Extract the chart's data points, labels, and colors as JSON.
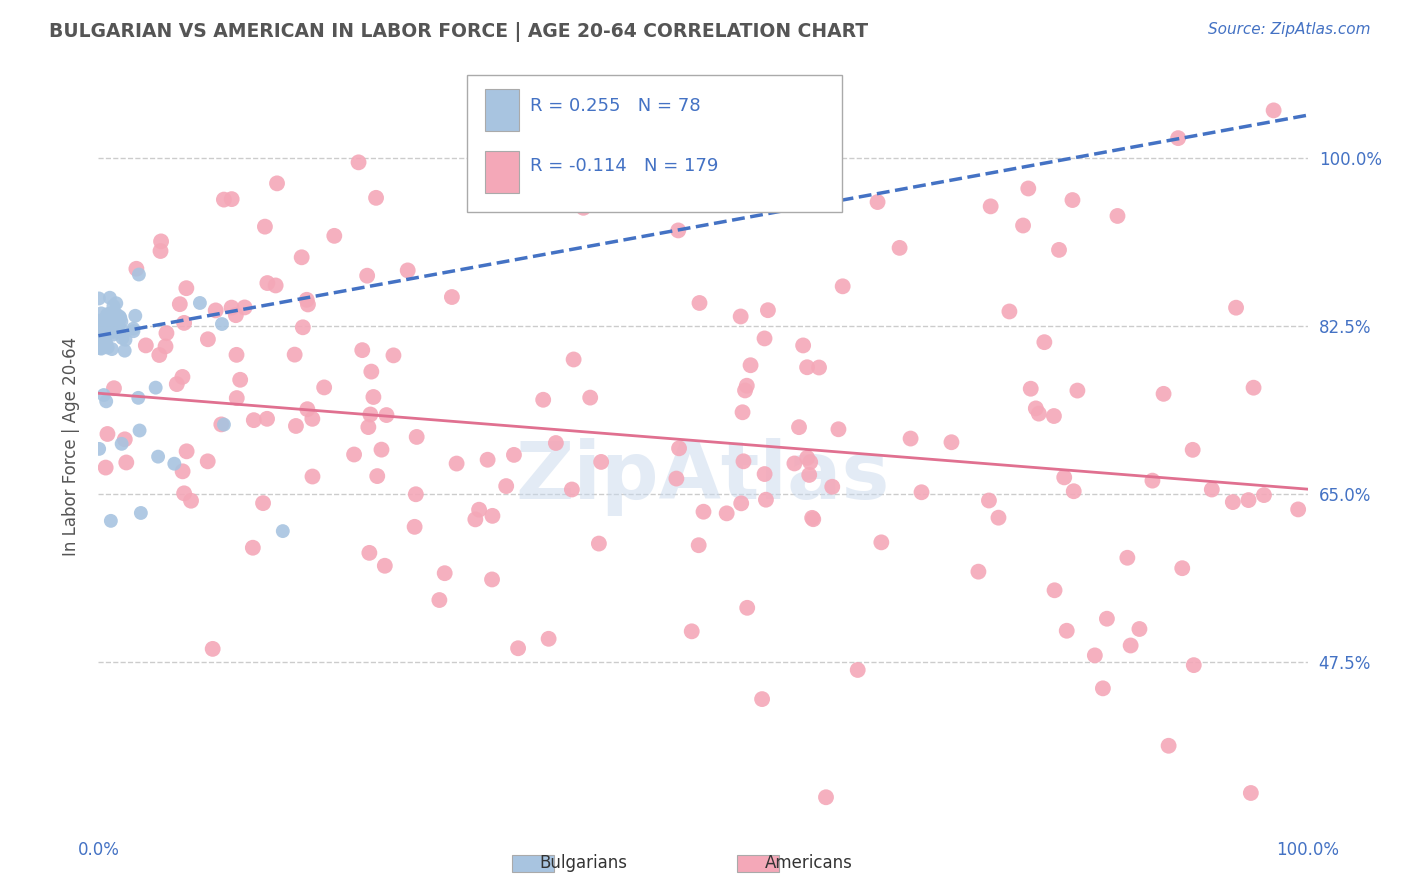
{
  "title": "BULGARIAN VS AMERICAN IN LABOR FORCE | AGE 20-64 CORRELATION CHART",
  "source": "Source: ZipAtlas.com",
  "ylabel": "In Labor Force | Age 20-64",
  "xlim": [
    0.0,
    1.0
  ],
  "ylim": [
    0.3,
    1.1
  ],
  "yticks": [
    0.475,
    0.65,
    0.825,
    1.0
  ],
  "ytick_labels": [
    "47.5%",
    "65.0%",
    "82.5%",
    "100.0%"
  ],
  "xtick_labels": [
    "0.0%",
    "100.0%"
  ],
  "xticks": [
    0.0,
    1.0
  ],
  "bg_color": "#ffffff",
  "grid_color": "#cccccc",
  "bulgarians_color": "#a8c4e0",
  "americans_color": "#f4a8b8",
  "trendline_blue_color": "#4472c4",
  "trendline_pink_color": "#e07090",
  "title_color": "#555555",
  "R_bulgarian": 0.255,
  "N_bulgarian": 78,
  "R_american": -0.114,
  "N_american": 179,
  "legend_text_color": "#4472c4",
  "tick_color": "#4472c4",
  "ylabel_color": "#555555",
  "bulg_trend_x0": 0.0,
  "bulg_trend_y0": 0.815,
  "bulg_trend_x1": 1.0,
  "bulg_trend_y1": 1.045,
  "amer_trend_x0": 0.0,
  "amer_trend_y0": 0.755,
  "amer_trend_x1": 1.0,
  "amer_trend_y1": 0.655
}
